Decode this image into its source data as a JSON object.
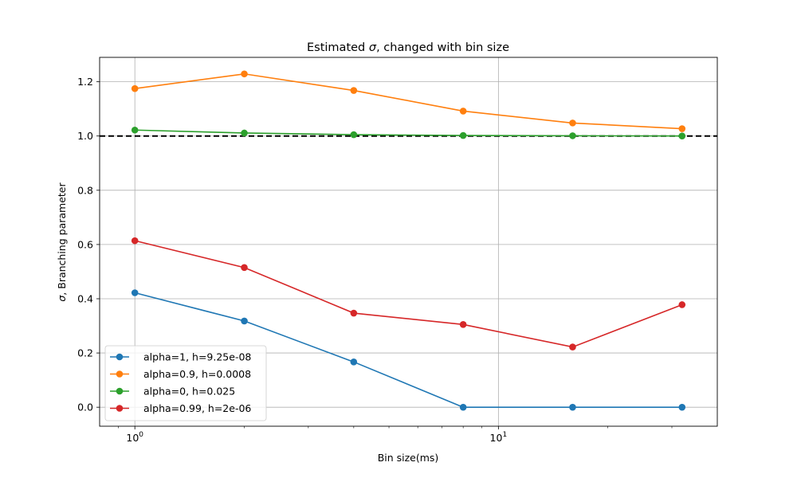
{
  "chart_data": {
    "type": "line",
    "title": "Estimated σ, changed with bin size",
    "title_prefix": "Estimated ",
    "title_symbol": "σ",
    "title_suffix": ", changed with bin size",
    "xlabel": "Bin size(ms)",
    "ylabel": "σ, Branching parameter",
    "ylabel_symbol": "σ",
    "ylabel_suffix": ", Branching parameter",
    "x_scale": "log",
    "xlim": [
      0.8,
      40
    ],
    "ylim": [
      -0.07,
      1.29
    ],
    "x": [
      1,
      2,
      4,
      8,
      16,
      32
    ],
    "xticks": [
      {
        "value": 1,
        "base": "10",
        "exp": "0"
      },
      {
        "value": 10,
        "base": "10",
        "exp": "1"
      }
    ],
    "yticks": [
      {
        "value": 0.0,
        "label": "0.0"
      },
      {
        "value": 0.2,
        "label": "0.2"
      },
      {
        "value": 0.4,
        "label": "0.4"
      },
      {
        "value": 0.6,
        "label": "0.6"
      },
      {
        "value": 0.8,
        "label": "0.8"
      },
      {
        "value": 1.0,
        "label": "1.0"
      },
      {
        "value": 1.2,
        "label": "1.2"
      }
    ],
    "grid": true,
    "legend_position": "lower-left",
    "reference_line": {
      "y": 1.0,
      "style": "dashed",
      "color": "#000000"
    },
    "series": [
      {
        "name": "alpha=1, h=9.25e-08",
        "color": "#1f77b4",
        "values": [
          0.422,
          0.318,
          0.167,
          0.0,
          0.0,
          0.0
        ]
      },
      {
        "name": "alpha=0.9, h=0.0008",
        "color": "#ff7f0e",
        "values": [
          1.175,
          1.229,
          1.168,
          1.092,
          1.048,
          1.027
        ]
      },
      {
        "name": "alpha=0, h=0.025",
        "color": "#2ca02c",
        "values": [
          1.022,
          1.011,
          1.005,
          1.002,
          1.001,
          1.0
        ]
      },
      {
        "name": "alpha=0.99, h=2e-06",
        "color": "#d62728",
        "values": [
          0.614,
          0.515,
          0.347,
          0.305,
          0.222,
          0.378
        ]
      }
    ]
  }
}
